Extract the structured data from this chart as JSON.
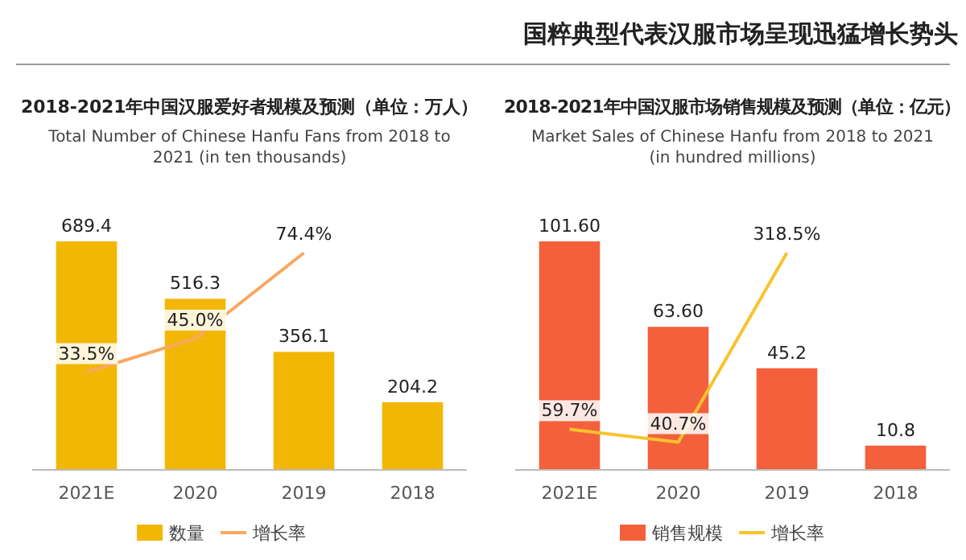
{
  "chart_data": [
    {
      "type": "bar",
      "title": "2018-2021年中国汉服爱好者规模及预测（单位：万人）",
      "subtitle": "Total Number of Chinese Hanfu Fans from 2018 to 2021 (in ten thousands)",
      "categories": [
        "2021E",
        "2020",
        "2019",
        "2018"
      ],
      "legend": "bottom",
      "series": [
        {
          "name": "数量",
          "color": "#f2b705",
          "values": [
            689.4,
            516.3,
            356.1,
            204.2
          ],
          "value_labels": [
            "689.4",
            "516.3",
            "356.1",
            "204.2"
          ]
        },
        {
          "name": "增长率",
          "type": "line",
          "axis": "y2",
          "color": "#f8a860",
          "values": [
            33.5,
            45.0,
            74.4,
            null
          ],
          "value_labels": [
            "33.5%",
            "45.0%",
            "74.4%",
            null
          ]
        }
      ]
    },
    {
      "type": "bar",
      "annotations": [
        "国粹典型代表汉服市场呈现迅猛增长势头"
      ],
      "title": "2018-2021年中国汉服市场销售规模及预测（单位：亿元）",
      "subtitle": "Market Sales of Chinese Hanfu from 2018 to 2021 (in hundred millions)",
      "categories": [
        "2021E",
        "2020",
        "2019",
        "2018"
      ],
      "legend": "bottom",
      "series": [
        {
          "name": "销售规模",
          "color": "#f4603c",
          "values": [
            101.6,
            63.6,
            45.2,
            10.8
          ],
          "value_labels": [
            "101.60",
            "63.60",
            "45.2",
            "10.8"
          ]
        },
        {
          "name": "增长率",
          "type": "line",
          "axis": "y2",
          "color": "#f9c22e",
          "values": [
            59.7,
            40.7,
            318.5,
            null
          ],
          "value_labels": [
            "59.7%",
            "40.7%",
            "318.5%",
            null
          ]
        }
      ]
    }
  ]
}
